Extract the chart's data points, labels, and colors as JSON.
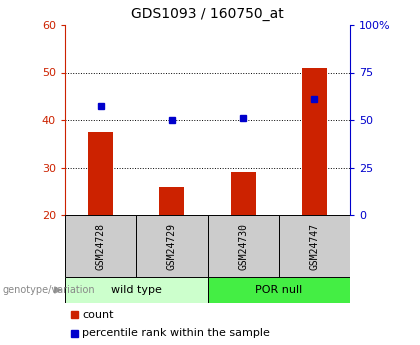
{
  "title": "GDS1093 / 160750_at",
  "samples": [
    "GSM24728",
    "GSM24729",
    "GSM24730",
    "GSM24747"
  ],
  "counts": [
    37.5,
    26.0,
    29.0,
    51.0
  ],
  "percentile_ranks": [
    43.0,
    40.0,
    40.5,
    44.5
  ],
  "ylim_left": [
    20,
    60
  ],
  "ylim_right": [
    0,
    100
  ],
  "yticks_left": [
    20,
    30,
    40,
    50,
    60
  ],
  "yticks_right": [
    0,
    25,
    50,
    75,
    100
  ],
  "ytick_labels_right": [
    "0",
    "25",
    "50",
    "75",
    "100%"
  ],
  "bar_color": "#cc2200",
  "dot_color": "#0000cc",
  "bar_bottom": 20,
  "groups": [
    {
      "label": "wild type",
      "color": "#ccffcc",
      "start": 0,
      "end": 2
    },
    {
      "label": "POR null",
      "color": "#44ee44",
      "start": 2,
      "end": 4
    }
  ],
  "legend_count_label": "count",
  "legend_pct_label": "percentile rank within the sample",
  "genotype_label": "genotype/variation",
  "axis_color_left": "#cc2200",
  "axis_color_right": "#0000cc",
  "tick_area_bg": "#cccccc",
  "plot_area_color": "#ffffff",
  "grid_yticks": [
    30,
    40,
    50
  ]
}
